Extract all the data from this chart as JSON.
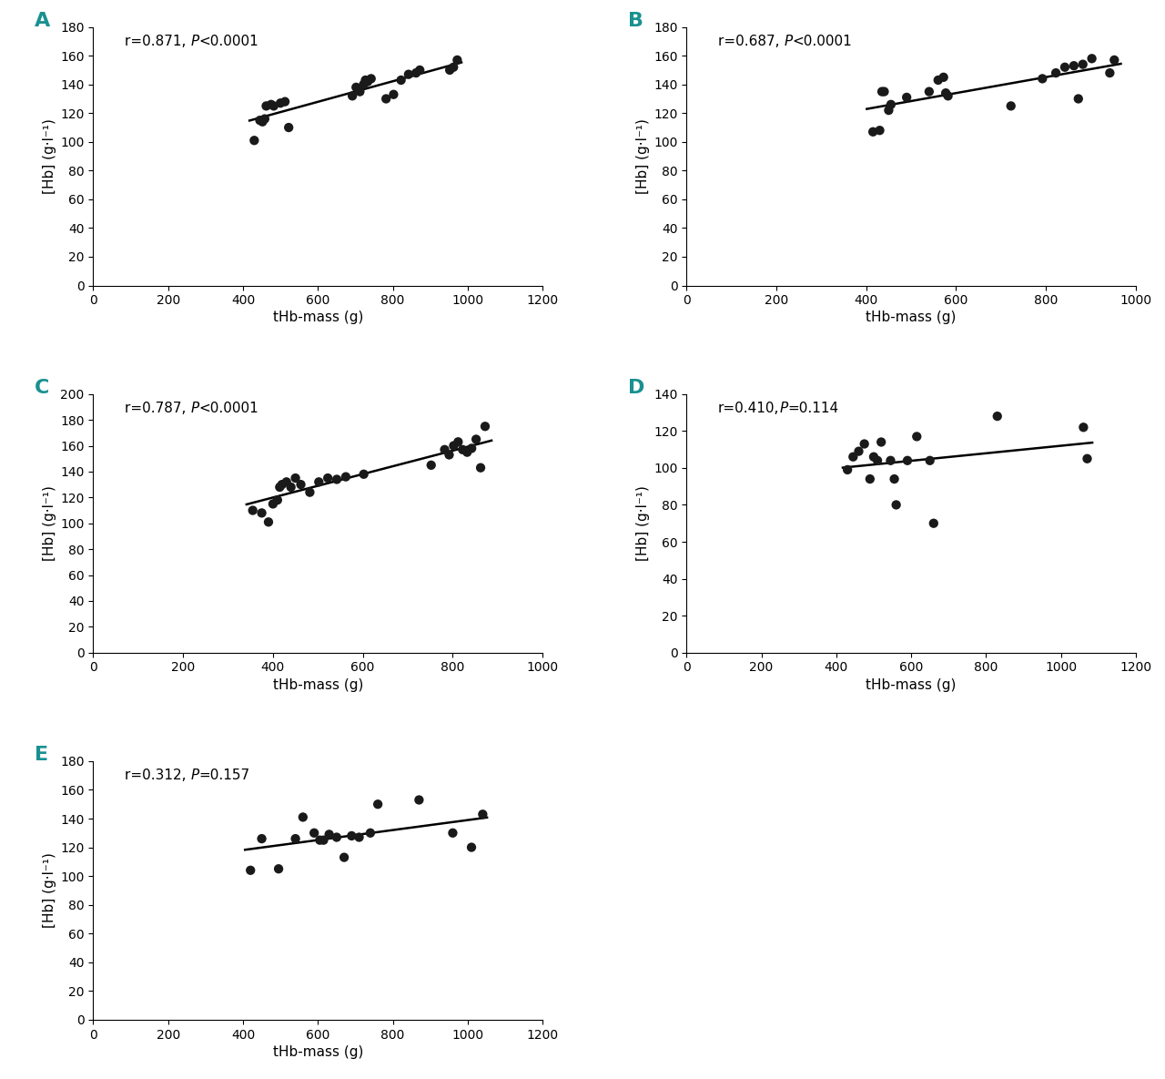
{
  "panels": [
    {
      "label": "A",
      "r_normal": "r=0.871, ",
      "r_italic": "P",
      "r_normal2": "<0.0001",
      "x": [
        430,
        445,
        452,
        458,
        462,
        475,
        482,
        500,
        512,
        522,
        692,
        702,
        712,
        722,
        727,
        733,
        742,
        782,
        802,
        822,
        842,
        862,
        872,
        952,
        962,
        972
      ],
      "y": [
        101,
        115,
        114,
        116,
        125,
        126,
        125,
        127,
        128,
        110,
        132,
        138,
        135,
        140,
        143,
        142,
        144,
        130,
        133,
        143,
        147,
        148,
        150,
        150,
        152,
        157
      ],
      "xlim": [
        0,
        1200
      ],
      "xticks": [
        0,
        200,
        400,
        600,
        800,
        1000,
        1200
      ],
      "ylim": [
        0,
        180
      ],
      "yticks": [
        0,
        20,
        40,
        60,
        80,
        100,
        120,
        140,
        160,
        180
      ],
      "xlabel": "tHb-mass (g)",
      "ylabel": "[Hb] (g·l⁻¹)"
    },
    {
      "label": "B",
      "r_normal": "r=0.687, ",
      "r_italic": "P",
      "r_normal2": "<0.0001",
      "x": [
        415,
        430,
        435,
        440,
        450,
        455,
        490,
        540,
        560,
        572,
        577,
        582,
        722,
        792,
        822,
        842,
        862,
        872,
        882,
        902,
        942,
        952
      ],
      "y": [
        107,
        108,
        135,
        135,
        122,
        126,
        131,
        135,
        143,
        145,
        134,
        132,
        125,
        144,
        148,
        152,
        153,
        130,
        154,
        158,
        148,
        157
      ],
      "xlim": [
        0,
        1000
      ],
      "xticks": [
        0,
        200,
        400,
        600,
        800,
        1000
      ],
      "ylim": [
        0,
        180
      ],
      "yticks": [
        0,
        20,
        40,
        60,
        80,
        100,
        120,
        140,
        160,
        180
      ],
      "xlabel": "tHb-mass (g)",
      "ylabel": "[Hb] (g·l⁻¹)"
    },
    {
      "label": "C",
      "r_normal": "r=0.787, ",
      "r_italic": "P",
      "r_normal2": "<0.0001",
      "x": [
        355,
        375,
        390,
        400,
        410,
        415,
        420,
        430,
        440,
        450,
        462,
        482,
        502,
        522,
        542,
        562,
        602,
        752,
        782,
        792,
        802,
        812,
        822,
        832,
        842,
        852,
        862,
        872
      ],
      "y": [
        110,
        108,
        101,
        115,
        118,
        128,
        130,
        132,
        128,
        135,
        130,
        124,
        132,
        135,
        134,
        136,
        138,
        145,
        157,
        153,
        160,
        163,
        157,
        155,
        158,
        165,
        143,
        175
      ],
      "xlim": [
        0,
        1000
      ],
      "xticks": [
        0,
        200,
        400,
        600,
        800,
        1000
      ],
      "ylim": [
        0,
        200
      ],
      "yticks": [
        0,
        20,
        40,
        60,
        80,
        100,
        120,
        140,
        160,
        180,
        200
      ],
      "xlabel": "tHb-mass (g)",
      "ylabel": "[Hb] (g·l⁻¹)"
    },
    {
      "label": "D",
      "r_normal": "r=0.410,",
      "r_italic": "P",
      "r_normal2": "=0.114",
      "x": [
        430,
        445,
        460,
        475,
        490,
        500,
        510,
        520,
        545,
        555,
        560,
        590,
        615,
        650,
        660,
        830,
        1060,
        1070
      ],
      "y": [
        99,
        106,
        109,
        113,
        94,
        106,
        104,
        114,
        104,
        94,
        80,
        104,
        117,
        104,
        70,
        128,
        122,
        105
      ],
      "xlim": [
        0,
        1200
      ],
      "xticks": [
        0,
        200,
        400,
        600,
        800,
        1000,
        1200
      ],
      "ylim": [
        0,
        140
      ],
      "yticks": [
        0,
        20,
        40,
        60,
        80,
        100,
        120,
        140
      ],
      "xlabel": "tHb-mass (g)",
      "ylabel": "[Hb] (g·l⁻¹)"
    },
    {
      "label": "E",
      "r_normal": "r=0.312, ",
      "r_italic": "P",
      "r_normal2": "=0.157",
      "x": [
        420,
        450,
        495,
        540,
        560,
        590,
        605,
        615,
        630,
        650,
        670,
        690,
        710,
        740,
        760,
        870,
        960,
        1010,
        1040
      ],
      "y": [
        104,
        126,
        105,
        126,
        141,
        130,
        125,
        125,
        129,
        127,
        113,
        128,
        127,
        130,
        150,
        153,
        130,
        120,
        143
      ],
      "xlim": [
        0,
        1200
      ],
      "xticks": [
        0,
        200,
        400,
        600,
        800,
        1000,
        1200
      ],
      "ylim": [
        0,
        180
      ],
      "yticks": [
        0,
        20,
        40,
        60,
        80,
        100,
        120,
        140,
        160,
        180
      ],
      "xlabel": "tHb-mass (g)",
      "ylabel": "[Hb] (g·l⁻¹)"
    }
  ],
  "label_color": "#1a9090",
  "scatter_color": "#1a1a1a",
  "line_color": "#000000",
  "background_color": "#ffffff",
  "annotation_fontsize": 11,
  "label_fontsize": 16,
  "axis_fontsize": 11,
  "tick_fontsize": 10
}
